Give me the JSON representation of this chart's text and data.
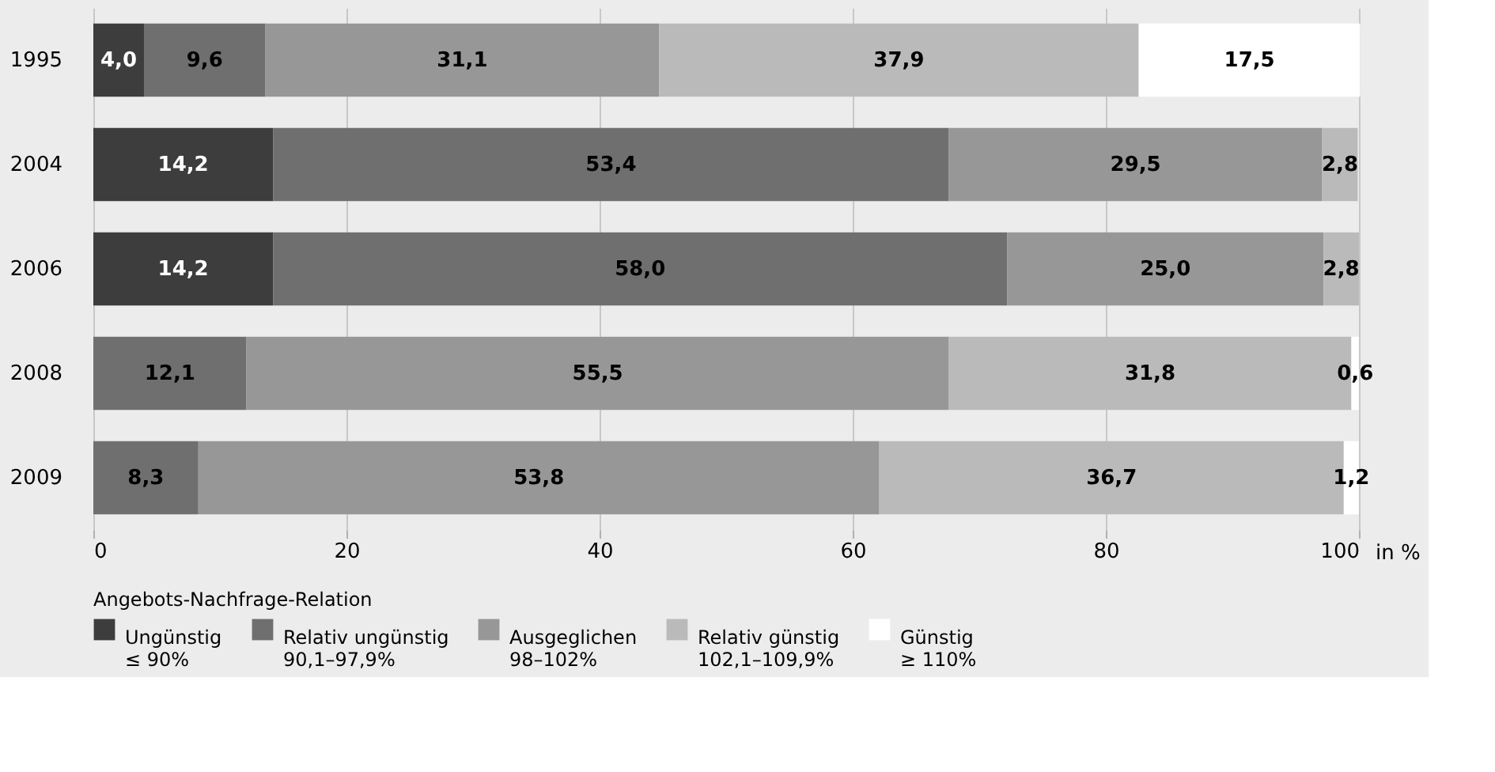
{
  "chart_data": {
    "type": "bar",
    "orientation": "horizontal",
    "stacked": true,
    "categories": [
      "1995",
      "2004",
      "2006",
      "2008",
      "2009"
    ],
    "series": [
      {
        "name": "Ungünstig\n≤ 90%",
        "color": "#3d3d3d",
        "values": [
          4.0,
          14.2,
          14.2,
          null,
          null
        ],
        "value_labels": [
          "4,0",
          "14,2",
          "14,2",
          null,
          null
        ]
      },
      {
        "name": "Relativ ungünstig\n90,1–97,9%",
        "color": "#6f6f6f",
        "values": [
          9.6,
          53.4,
          58.0,
          12.1,
          8.3
        ],
        "value_labels": [
          "9,6",
          "53,4",
          "58,0",
          "12,1",
          "8,3"
        ]
      },
      {
        "name": "Ausgeglichen\n98–102%",
        "color": "#979797",
        "values": [
          31.1,
          29.5,
          25.0,
          55.5,
          53.8
        ],
        "value_labels": [
          "31,1",
          "29,5",
          "25,0",
          "55,5",
          "53,8"
        ]
      },
      {
        "name": "Relativ günstig\n102,1–109,9%",
        "color": "#bababa",
        "values": [
          37.9,
          2.8,
          2.8,
          31.8,
          36.7
        ],
        "value_labels": [
          "37,9",
          "2,8",
          "2,8",
          "31,8",
          "36,7"
        ]
      },
      {
        "name": "Günstig\n≥ 110%",
        "color": "#ffffff",
        "values": [
          17.5,
          null,
          null,
          0.6,
          1.2
        ],
        "value_labels": [
          "17,5",
          null,
          null,
          "0,6",
          "1,2"
        ]
      }
    ],
    "xlim": [
      0,
      100
    ],
    "xticks": [
      0,
      20,
      40,
      60,
      80,
      100
    ],
    "xlabel": "in %",
    "legend_title": "Angebots-Nachfrage-Relation",
    "legend": "bottom",
    "grid": "x"
  }
}
